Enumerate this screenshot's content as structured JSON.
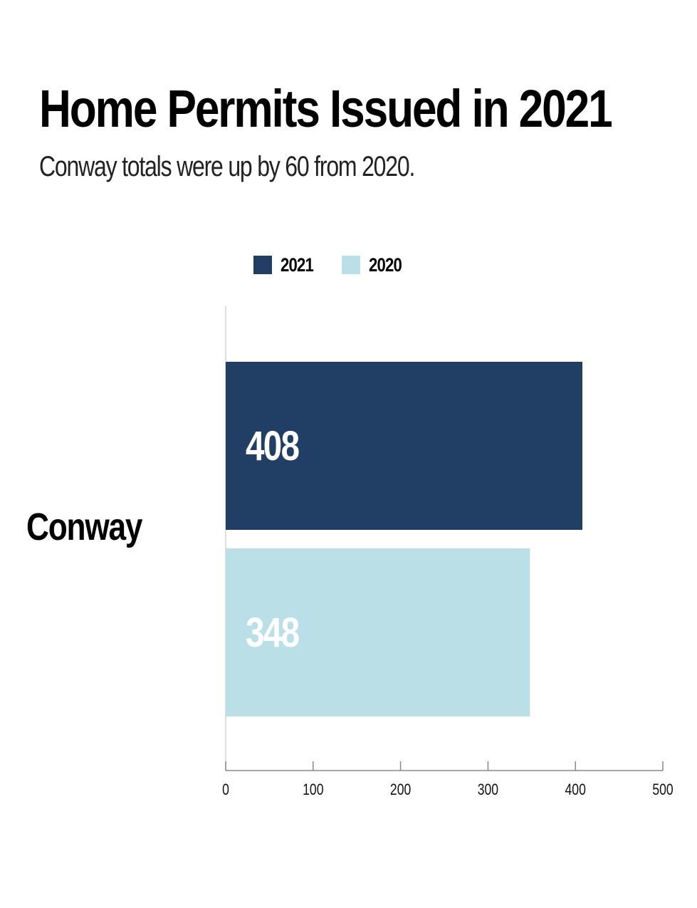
{
  "title": "Home Permits Issued in 2021",
  "subtitle": "Conway totals were up by 60 from 2020.",
  "colors": {
    "2021": "#213f64",
    "2020": "#badfe7",
    "axis": "#888888",
    "bar_label": "#ffffff"
  },
  "chart_data": {
    "type": "bar",
    "orientation": "horizontal",
    "title": "Home Permits Issued in 2021",
    "subtitle": "Conway totals were up by 60 from 2020.",
    "categories": [
      "Conway"
    ],
    "series": [
      {
        "name": "2021",
        "values": [
          408
        ],
        "color": "#213f64"
      },
      {
        "name": "2020",
        "values": [
          348
        ],
        "color": "#badfe7"
      }
    ],
    "xlim": [
      0,
      500
    ],
    "xticks": [
      0,
      100,
      200,
      300,
      400,
      500
    ],
    "xtick_labels": [
      "0",
      "100",
      "200",
      "300",
      "400",
      "500"
    ],
    "data_labels": [
      "408",
      "348"
    ],
    "legend": {
      "position": "top-center",
      "entries": [
        "2021",
        "2020"
      ]
    },
    "grid": false,
    "xlabel": "",
    "ylabel": ""
  }
}
